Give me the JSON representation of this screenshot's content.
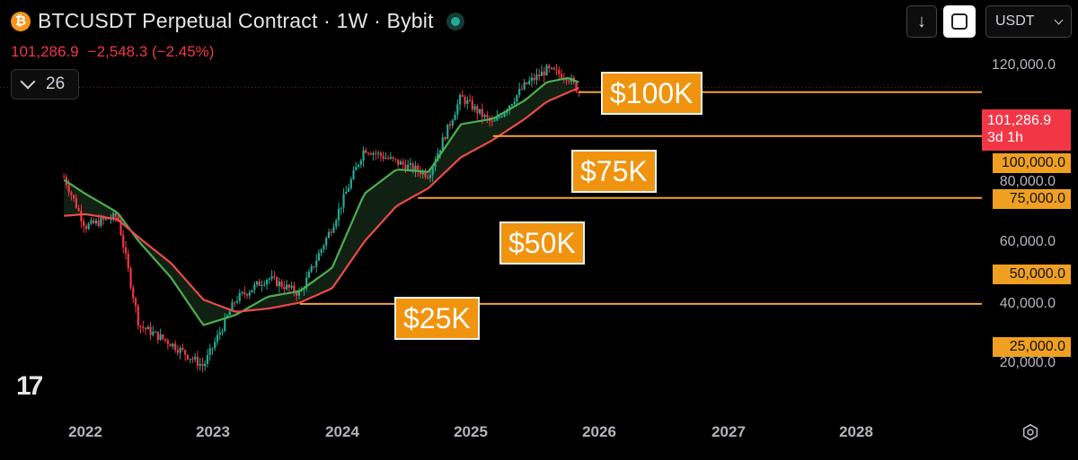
{
  "header": {
    "coin_glyph": "₿",
    "title": "BTCUSDT Perpetual Contract · 1W · Bybit",
    "last_price": "101,286.9",
    "change": "−2,548.3 (−2.45%)",
    "indicator_count": "26"
  },
  "toolbar": {
    "down_glyph": "↓",
    "currency": "USDT"
  },
  "tags": {
    "k100": "$100K",
    "k75": "$75K",
    "k50": "$50K",
    "k25": "$25K"
  },
  "price_scale": {
    "current_price": "101,286.9",
    "countdown": "3d 1h",
    "level_100k": "100,000.0",
    "level_75k": "75,000.0",
    "level_50k": "50,000.0",
    "level_25k": "25,000.0",
    "ticks": [
      "120,000.0",
      "80,000.0",
      "60,000.0",
      "40,000.0",
      "20,000.0"
    ]
  },
  "time_axis": [
    "2022",
    "2023",
    "2024",
    "2025",
    "2026",
    "2027",
    "2028"
  ],
  "logo_text": "17",
  "colors": {
    "up": "#22ab94",
    "down": "#f23645",
    "ema_fast": "#4caf50",
    "ema_slow": "#f04a4a",
    "level": "#f7a23b",
    "tag_bg": "#f0930e"
  },
  "chart_data": {
    "type": "line",
    "title": "BTCUSDT Perpetual Contract · 1W · Bybit",
    "x": [
      "2021-11",
      "2022-01",
      "2022-04",
      "2022-06",
      "2022-09",
      "2022-12",
      "2023-03",
      "2023-06",
      "2023-09",
      "2023-12",
      "2024-03",
      "2024-06",
      "2024-09",
      "2024-12",
      "2025-03",
      "2025-06",
      "2025-08",
      "2025-10",
      "2025-11"
    ],
    "series": [
      {
        "values": [
          58000,
          42000,
          45000,
          22000,
          19500,
          16800,
          26000,
          30000,
          27000,
          42000,
          70000,
          64000,
          59000,
          98000,
          82000,
          106000,
          117000,
          112000,
          101286.9
        ]
      },
      {
        "values": [
          57000,
          52000,
          46000,
          38000,
          30000,
          22000,
          23500,
          26500,
          27500,
          32000,
          52000,
          61000,
          60000,
          82000,
          85000,
          96000,
          108000,
          111000,
          108000
        ]
      },
      {
        "values": [
          45000,
          45500,
          44000,
          39000,
          33000,
          26000,
          24000,
          24500,
          25500,
          28000,
          38000,
          48000,
          54000,
          66000,
          74000,
          85000,
          95000,
          101000,
          104000
        ]
      }
    ],
    "horizontal_levels": [
      100000,
      75000,
      50000,
      25000
    ],
    "current_price": 101286.9,
    "y_scale": "log",
    "ylim": [
      14000,
      140000
    ],
    "xlim": [
      "2021-09",
      "2028-10"
    ]
  }
}
